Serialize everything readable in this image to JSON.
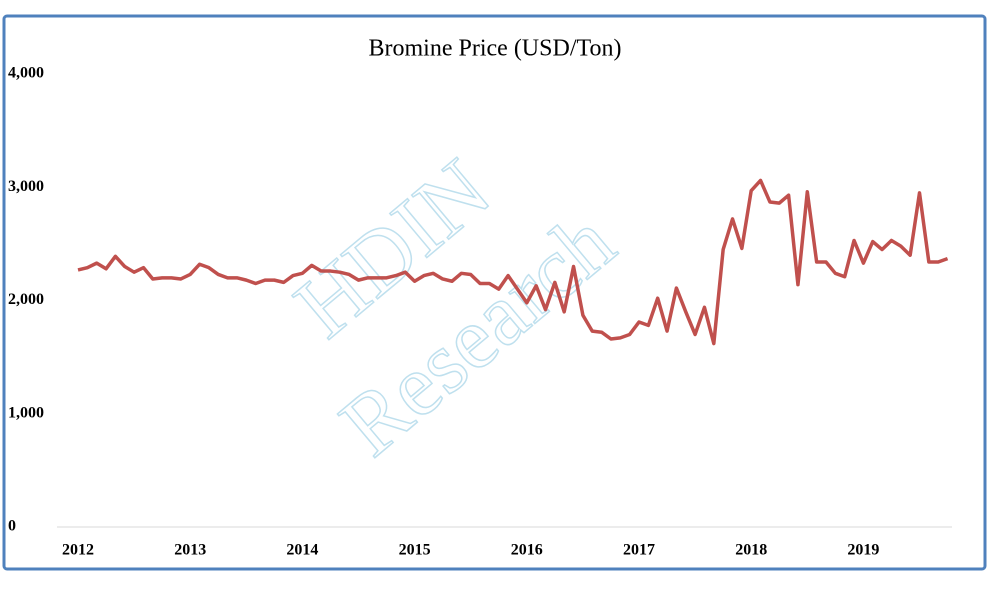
{
  "chart_data": {
    "type": "line",
    "title": "Bromine Price (USD/Ton)",
    "watermark": [
      "HDIN",
      "Research"
    ],
    "categories": [
      "2012",
      null,
      null,
      null,
      null,
      null,
      null,
      null,
      null,
      null,
      null,
      null,
      "2013",
      null,
      null,
      null,
      null,
      null,
      null,
      null,
      null,
      null,
      null,
      null,
      "2014",
      null,
      null,
      null,
      null,
      null,
      null,
      null,
      null,
      null,
      null,
      null,
      "2015",
      null,
      null,
      null,
      null,
      null,
      null,
      null,
      null,
      null,
      null,
      null,
      "2016",
      null,
      null,
      null,
      null,
      null,
      null,
      null,
      null,
      null,
      null,
      null,
      "2017",
      null,
      null,
      null,
      null,
      null,
      null,
      null,
      null,
      null,
      null,
      null,
      "2018",
      null,
      null,
      null,
      null,
      null,
      null,
      null,
      null,
      null,
      null,
      null,
      "2019",
      null,
      null,
      null,
      null,
      null,
      null,
      null,
      null,
      null
    ],
    "series": [
      {
        "color": "#c0504d",
        "values": [
          2270,
          2290,
          2330,
          2280,
          2390,
          2300,
          2250,
          2290,
          2190,
          2200,
          2200,
          2190,
          2230,
          2320,
          2290,
          2230,
          2200,
          2200,
          2180,
          2150,
          2180,
          2180,
          2160,
          2220,
          2240,
          2310,
          2260,
          2260,
          2250,
          2230,
          2180,
          2200,
          2200,
          2200,
          2220,
          2250,
          2170,
          2220,
          2240,
          2190,
          2170,
          2240,
          2230,
          2150,
          2150,
          2100,
          2220,
          2100,
          1980,
          2130,
          1920,
          2160,
          1900,
          2300,
          1870,
          1730,
          1720,
          1660,
          1670,
          1700,
          1810,
          1780,
          2020,
          1730,
          2110,
          1900,
          1700,
          1940,
          1620,
          2450,
          2720,
          2460,
          2970,
          3060,
          2870,
          2860,
          2930,
          2140,
          2960,
          2340,
          2340,
          2240,
          2210,
          2530,
          2330,
          2520,
          2450,
          2530,
          2480,
          2400,
          2950,
          2340,
          2340,
          2370
        ]
      }
    ],
    "ylim": [
      0,
      4000
    ],
    "yticks": [
      0,
      {
        "value": 1000,
        "label": "1,000"
      },
      {
        "value": 2000,
        "label": "2,000"
      },
      {
        "value": 3000,
        "label": "3,000"
      },
      {
        "value": 4000,
        "label": "4,000"
      }
    ],
    "grid": false
  }
}
